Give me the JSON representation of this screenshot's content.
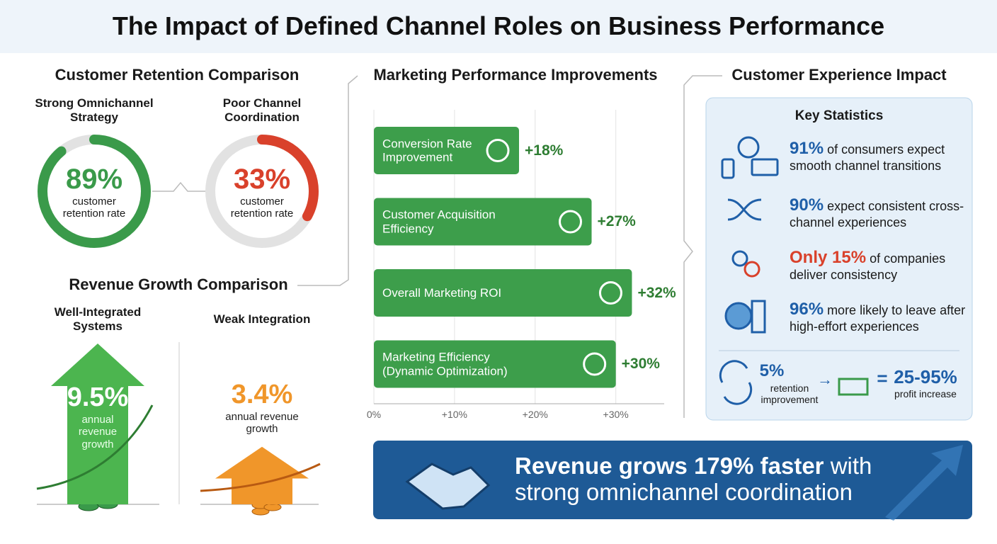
{
  "title": "The Impact of Defined Channel Roles on Business Performance",
  "chart_data": [
    {
      "type": "donut",
      "title": "Customer Retention Comparison",
      "categories": [
        "Strong Omnichannel Strategy",
        "Poor Channel Coordination"
      ],
      "values": [
        89,
        33
      ],
      "value_labels": [
        "89%",
        "33%"
      ],
      "sublabels": [
        "customer retention rate",
        "customer retention rate"
      ],
      "colors": [
        "#3a9a4a",
        "#d9412b"
      ]
    },
    {
      "type": "arrow",
      "title": "Revenue Growth Comparison",
      "categories": [
        "Well-Integrated Systems",
        "Weak Integration"
      ],
      "values": [
        9.5,
        3.4
      ],
      "value_labels": [
        "9.5%",
        "3.4%"
      ],
      "sublabels": [
        "annual revenue growth",
        "annual revenue growth"
      ],
      "colors": [
        "#4cb54f",
        "#f0962a"
      ]
    },
    {
      "type": "bar",
      "title": "Marketing Performance Improvements",
      "categories": [
        "Conversion Rate Improvement",
        "Customer Acquisition Efficiency",
        "Overall Marketing ROI",
        "Marketing Efficiency (Dynamic Optimization)"
      ],
      "values": [
        18,
        27,
        32,
        30
      ],
      "value_labels": [
        "+18%",
        "+27%",
        "+32%",
        "+30%"
      ],
      "xlim": [
        0,
        36
      ],
      "xticks": [
        {
          "value": 0,
          "label": "0%"
        },
        {
          "value": 10,
          "label": "+10%"
        },
        {
          "value": 20,
          "label": "+20%"
        },
        {
          "value": 30,
          "label": "+30%"
        }
      ],
      "color": "#3d9e4b",
      "grid": true
    }
  ],
  "experience": {
    "title": "Customer Experience Impact",
    "subtitle": "Key Statistics",
    "stats": [
      {
        "highlight": "91%",
        "text": "of consumers expect smooth channel transitions",
        "color": "#1f5fa8"
      },
      {
        "highlight": "90%",
        "text": "expect consistent cross-channel experiences",
        "color": "#1f5fa8"
      },
      {
        "highlight": "Only 15%",
        "text": "of companies deliver consistency",
        "color": "#d9412b"
      },
      {
        "highlight": "96%",
        "text": "more likely to leave after high-effort experiences",
        "color": "#1f5fa8"
      }
    ],
    "retention_value": "5%",
    "retention_label": "retention improvement",
    "profit_value": "25-95%",
    "profit_label": "profit increase"
  },
  "banner": {
    "bold": "Revenue grows 179% faster",
    "rest": "with strong omnichannel coordination"
  }
}
